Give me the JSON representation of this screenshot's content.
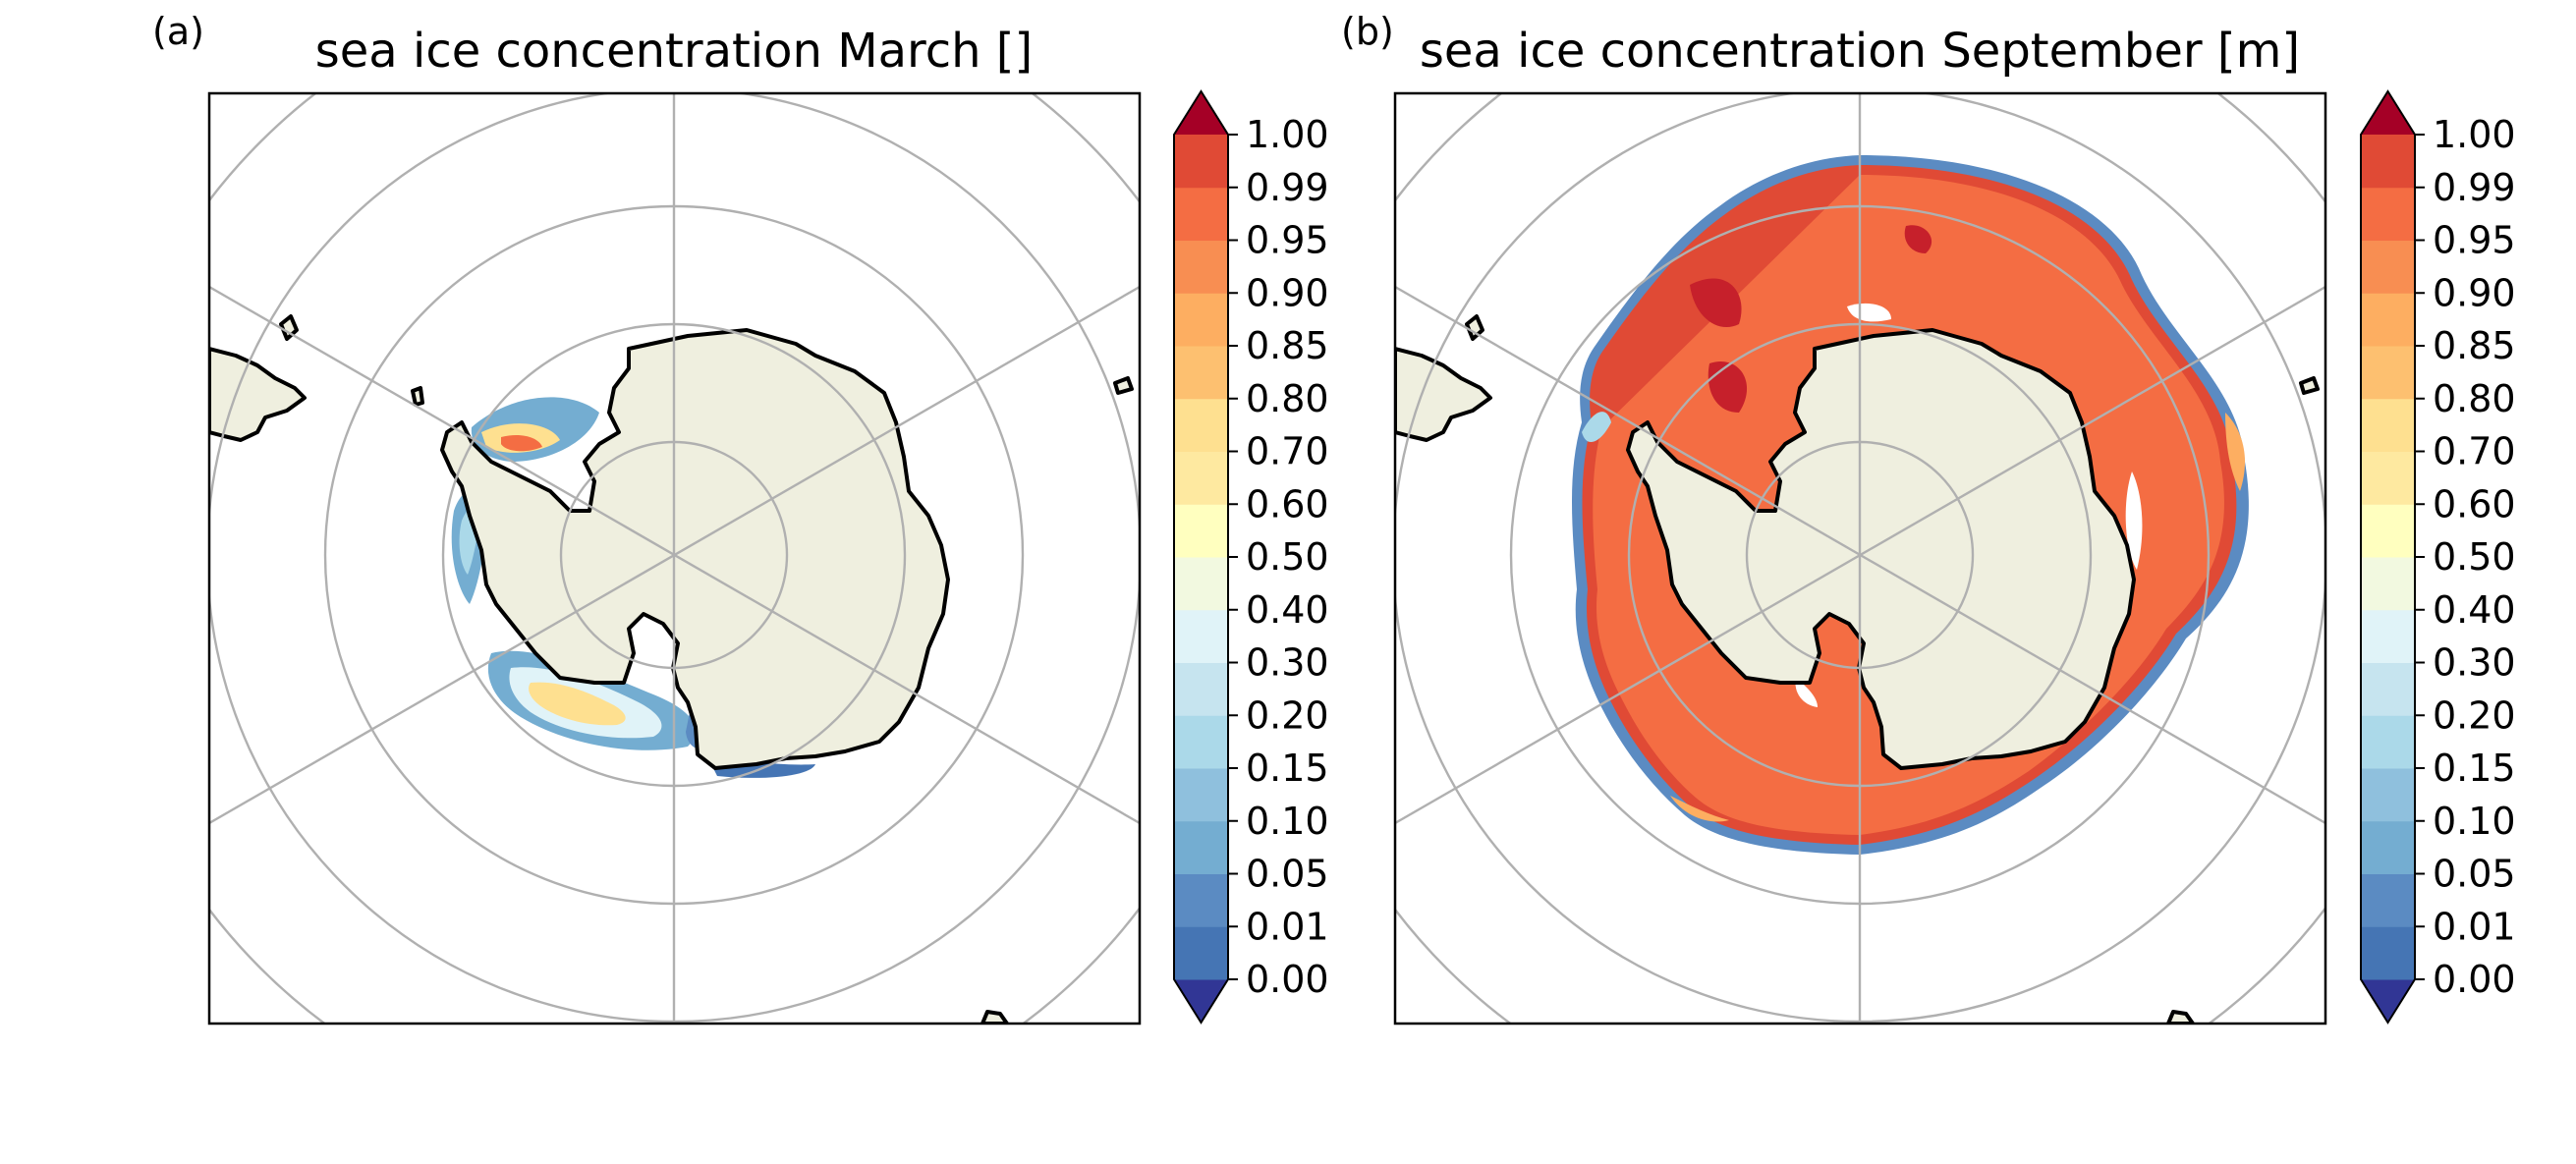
{
  "figure": {
    "panels": [
      {
        "id": "a",
        "label": "(a)",
        "title": "sea ice concentration March []"
      },
      {
        "id": "b",
        "label": "(b)",
        "title": "sea ice concentration September [m]"
      }
    ],
    "colorbar": {
      "ticks": [
        "0.00",
        "0.01",
        "0.05",
        "0.10",
        "0.15",
        "0.20",
        "0.30",
        "0.40",
        "0.50",
        "0.60",
        "0.70",
        "0.80",
        "0.85",
        "0.90",
        "0.95",
        "0.99",
        "1.00"
      ],
      "colors": [
        "#4575b4",
        "#5b8bc2",
        "#74add1",
        "#8fc0dd",
        "#abd9e9",
        "#c6e4ef",
        "#e0f3f8",
        "#f2f9e0",
        "#ffffbf",
        "#fee9a0",
        "#fee090",
        "#fdc070",
        "#fdae61",
        "#f88e52",
        "#f46d43",
        "#e04a35",
        "#c6202b"
      ],
      "under_color": "#313695",
      "over_color": "#a50026",
      "extend": "both"
    },
    "colors": {
      "land": "#efefdf",
      "coastline": "#000000",
      "grid": "#b0b0b0",
      "panel_border": "#000000"
    }
  }
}
